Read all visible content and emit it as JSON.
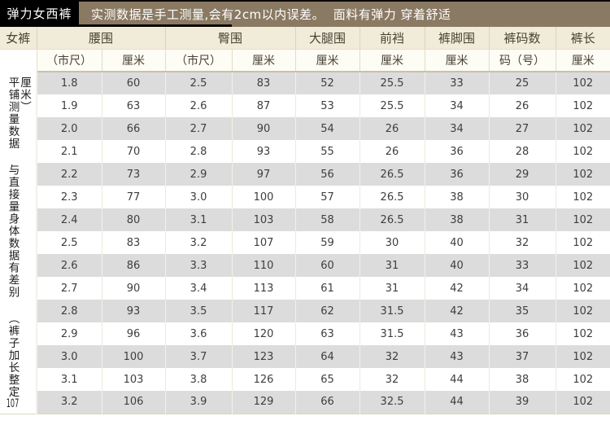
{
  "banner": {
    "product_label": "弹力女西裤",
    "notice": "实测数据是手工测量,会有2cm以内误差。  面料有弹力 穿着舒适"
  },
  "side_note": {
    "before": "平铺测量数据 与直接量身体数据有差别 （裤子加长整定",
    "number": "107",
    "after": "厘米）"
  },
  "table": {
    "corner_label": "女裤",
    "groups": [
      "腰围",
      "臀围",
      "大腿围",
      "前裆",
      "裤脚围",
      "裤码数",
      "裤长"
    ],
    "units": [
      "（市尺）",
      "厘米",
      "（市尺）",
      "厘米",
      "厘米",
      "厘米",
      "厘米",
      "码（号）",
      "厘米"
    ],
    "rows": [
      [
        "1.8",
        "60",
        "2.5",
        "83",
        "52",
        "25.5",
        "33",
        "25",
        "102"
      ],
      [
        "1.9",
        "63",
        "2.6",
        "87",
        "53",
        "25.5",
        "34",
        "26",
        "102"
      ],
      [
        "2.0",
        "66",
        "2.7",
        "90",
        "54",
        "26",
        "34",
        "27",
        "102"
      ],
      [
        "2.1",
        "70",
        "2.8",
        "93",
        "55",
        "26",
        "36",
        "28",
        "102"
      ],
      [
        "2.2",
        "73",
        "2.9",
        "97",
        "56",
        "26.5",
        "36",
        "29",
        "102"
      ],
      [
        "2.3",
        "77",
        "3.0",
        "100",
        "57",
        "26.5",
        "38",
        "30",
        "102"
      ],
      [
        "2.4",
        "80",
        "3.1",
        "103",
        "58",
        "26.5",
        "38",
        "31",
        "102"
      ],
      [
        "2.5",
        "83",
        "3.2",
        "107",
        "59",
        "30",
        "40",
        "32",
        "102"
      ],
      [
        "2.6",
        "86",
        "3.3",
        "110",
        "60",
        "31",
        "40",
        "33",
        "102"
      ],
      [
        "2.7",
        "90",
        "3.4",
        "113",
        "61",
        "31",
        "42",
        "34",
        "102"
      ],
      [
        "2.8",
        "93",
        "3.5",
        "117",
        "62",
        "31.5",
        "42",
        "35",
        "102"
      ],
      [
        "2.9",
        "96",
        "3.6",
        "120",
        "63",
        "31.5",
        "43",
        "36",
        "102"
      ],
      [
        "3.0",
        "100",
        "3.7",
        "123",
        "64",
        "32",
        "43",
        "37",
        "102"
      ],
      [
        "3.1",
        "103",
        "3.8",
        "126",
        "65",
        "32",
        "44",
        "38",
        "102"
      ],
      [
        "3.2",
        "106",
        "3.9",
        "129",
        "66",
        "32.5",
        "44",
        "39",
        "102"
      ]
    ]
  },
  "colors": {
    "banner_label_bg": "#000000",
    "banner_notice_bg": "#8a7a63",
    "banner_text": "#ffffff",
    "header_row_bg": "#f1ebda",
    "unit_row_bg": "#fdfcf5",
    "stripe_gray": "#dcdcdc",
    "text": "#3e3e3e"
  }
}
